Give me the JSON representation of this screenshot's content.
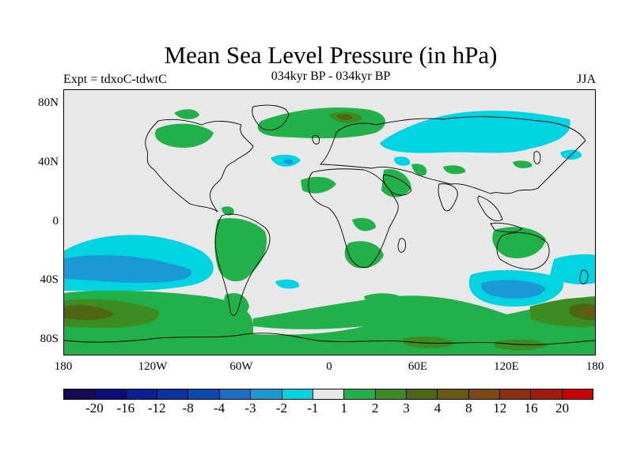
{
  "title": "Mean Sea Level Pressure (in hPa)",
  "subtitle_left": "Expt = tdxoC-tdwtC",
  "subtitle_center": "034kyr BP - 034kyr BP",
  "subtitle_right": "JJA",
  "y_ticks": [
    "80N",
    "40N",
    "0",
    "40S",
    "80S"
  ],
  "x_ticks": [
    "180",
    "120W",
    "60W",
    "0",
    "60E",
    "120E",
    "180"
  ],
  "colorbar": {
    "colors": [
      "#1a0a55",
      "#0c0c7a",
      "#0a1f93",
      "#0a33a0",
      "#0a4ab0",
      "#1a6ec4",
      "#1a9ad4",
      "#00d4e0",
      "#e8e8e8",
      "#22b04a",
      "#3c8c22",
      "#4e6614",
      "#6a5a10",
      "#7c4a10",
      "#8a3010",
      "#a01a10",
      "#c80008"
    ],
    "labels": [
      "-20",
      "-16",
      "-12",
      "-8",
      "-4",
      "-3",
      "-2",
      "-1",
      "1",
      "2",
      "3",
      "4",
      "8",
      "12",
      "16",
      "20"
    ]
  },
  "palette": {
    "background": "#e8e8e8",
    "cyan": "#00d4e0",
    "lightblue": "#1a9ad4",
    "green": "#22b04a",
    "darkgreen": "#3c8c22",
    "olive": "#4e6614",
    "brown": "#6a5a10",
    "coast": "#000000"
  }
}
